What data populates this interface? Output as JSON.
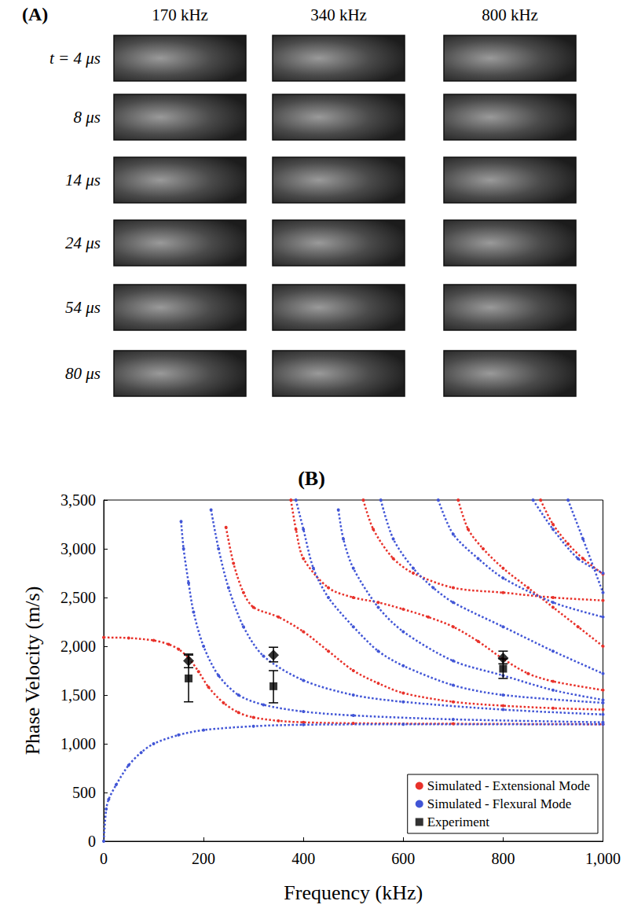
{
  "panel_a": {
    "label": "(A)",
    "columns": [
      "170 kHz",
      "340 kHz",
      "800 kHz"
    ],
    "rows": [
      "t = 4 μs",
      "8 μs",
      "14 μs",
      "24 μs",
      "54 μs",
      "80 μs"
    ]
  },
  "chart_data": {
    "type": "line",
    "title": "(B)",
    "x_label": "Frequency (kHz)",
    "y_label": "Phase Velocity (m/s)",
    "xlim": [
      0,
      1000
    ],
    "ylim": [
      0,
      3500
    ],
    "xticks": [
      0,
      200,
      400,
      600,
      800,
      1000
    ],
    "yticks": [
      0,
      500,
      1000,
      1500,
      2000,
      2500,
      3000,
      3500
    ],
    "grid": false,
    "legend": "lower right",
    "series": [
      {
        "name": "Simulated - Extensional Mode",
        "type": "line",
        "color": "#e8312a",
        "marker": "circle",
        "line_style": "dotted",
        "x": [
          0,
          50,
          100,
          130,
          150,
          170,
          190,
          210,
          240,
          270,
          300,
          350,
          400,
          500,
          700,
          1000
        ],
        "values": [
          2090,
          2085,
          2060,
          2020,
          1970,
          1880,
          1740,
          1580,
          1420,
          1320,
          1270,
          1235,
          1220,
          1210,
          1205,
          1200
        ]
      },
      {
        "name": "Simulated - Extensional Mode",
        "type": "line",
        "color": "#e8312a",
        "marker": "circle",
        "line_style": "dotted",
        "x": [
          245,
          260,
          280,
          300,
          350,
          400,
          450,
          500,
          550,
          600,
          700,
          800,
          900,
          1000
        ],
        "values": [
          3220,
          2850,
          2550,
          2400,
          2300,
          2150,
          1950,
          1750,
          1620,
          1520,
          1430,
          1390,
          1365,
          1350
        ]
      },
      {
        "name": "Simulated - Extensional Mode",
        "type": "line",
        "color": "#e8312a",
        "marker": "circle",
        "line_style": "dotted",
        "x": [
          375,
          385,
          400,
          450,
          500,
          550,
          600,
          650,
          700,
          750,
          800,
          850,
          900,
          1000
        ],
        "values": [
          3500,
          3200,
          2900,
          2600,
          2500,
          2450,
          2380,
          2300,
          2200,
          2050,
          1870,
          1720,
          1640,
          1550
        ]
      },
      {
        "name": "Simulated - Extensional Mode",
        "type": "line",
        "color": "#e8312a",
        "marker": "circle",
        "line_style": "dotted",
        "x": [
          520,
          540,
          580,
          620,
          700,
          800,
          900,
          1000
        ],
        "values": [
          3500,
          3200,
          2900,
          2750,
          2600,
          2550,
          2500,
          2470
        ]
      },
      {
        "name": "Simulated - Extensional Mode",
        "type": "line",
        "color": "#e8312a",
        "marker": "circle",
        "line_style": "dotted",
        "x": [
          710,
          730,
          760,
          800,
          850,
          900,
          950,
          1000
        ],
        "values": [
          3500,
          3200,
          3000,
          2800,
          2600,
          2400,
          2200,
          2000
        ]
      },
      {
        "name": "Simulated - Extensional Mode",
        "type": "line",
        "color": "#e8312a",
        "marker": "circle",
        "line_style": "dotted",
        "x": [
          875,
          900,
          930,
          960,
          1000
        ],
        "values": [
          3500,
          3250,
          3050,
          2900,
          2740
        ]
      },
      {
        "name": "Simulated - Flexural Mode",
        "type": "line",
        "color": "#4155d6",
        "marker": "circle",
        "line_style": "dotted",
        "x": [
          0,
          5,
          10,
          25,
          50,
          75,
          100,
          150,
          200,
          300,
          400,
          600,
          1000
        ],
        "values": [
          0,
          330,
          430,
          580,
          780,
          910,
          1000,
          1090,
          1140,
          1180,
          1195,
          1200,
          1200
        ]
      },
      {
        "name": "Simulated - Flexural Mode",
        "type": "line",
        "color": "#4155d6",
        "marker": "circle",
        "line_style": "dotted",
        "x": [
          155,
          160,
          170,
          180,
          200,
          230,
          270,
          320,
          400,
          500,
          700,
          1000
        ],
        "values": [
          3280,
          3000,
          2650,
          2350,
          2000,
          1700,
          1500,
          1400,
          1330,
          1290,
          1250,
          1220
        ]
      },
      {
        "name": "Simulated - Flexural Mode",
        "type": "line",
        "color": "#4155d6",
        "marker": "circle",
        "line_style": "dotted",
        "x": [
          215,
          230,
          250,
          280,
          320,
          400,
          500,
          600,
          800,
          1000
        ],
        "values": [
          3400,
          3000,
          2600,
          2200,
          1900,
          1650,
          1500,
          1430,
          1350,
          1300
        ]
      },
      {
        "name": "Simulated - Flexural Mode",
        "type": "line",
        "color": "#4155d6",
        "marker": "circle",
        "line_style": "dotted",
        "x": [
          385,
          400,
          420,
          450,
          500,
          550,
          600,
          700,
          800,
          1000
        ],
        "values": [
          3500,
          3200,
          2800,
          2500,
          2200,
          1950,
          1800,
          1600,
          1500,
          1420
        ]
      },
      {
        "name": "Simulated - Flexural Mode",
        "type": "line",
        "color": "#4155d6",
        "marker": "circle",
        "line_style": "dotted",
        "x": [
          470,
          480,
          500,
          550,
          600,
          700,
          800,
          900,
          1000
        ],
        "values": [
          3400,
          3100,
          2800,
          2400,
          2150,
          1850,
          1700,
          1550,
          1450
        ]
      },
      {
        "name": "Simulated - Flexural Mode",
        "type": "line",
        "color": "#4155d6",
        "marker": "circle",
        "line_style": "dotted",
        "x": [
          555,
          580,
          620,
          660,
          700,
          800,
          900,
          1000
        ],
        "values": [
          3500,
          3100,
          2800,
          2600,
          2450,
          2200,
          1950,
          1720
        ]
      },
      {
        "name": "Simulated - Flexural Mode",
        "type": "line",
        "color": "#4155d6",
        "marker": "circle",
        "line_style": "dotted",
        "x": [
          670,
          700,
          750,
          800,
          900,
          1000
        ],
        "values": [
          3500,
          3150,
          2900,
          2700,
          2450,
          2300
        ]
      },
      {
        "name": "Simulated - Flexural Mode",
        "type": "line",
        "color": "#4155d6",
        "marker": "circle",
        "line_style": "dotted",
        "x": [
          860,
          900,
          950,
          1000
        ],
        "values": [
          3500,
          3200,
          2900,
          2750
        ]
      },
      {
        "name": "Simulated - Flexural Mode",
        "type": "line",
        "color": "#4155d6",
        "marker": "circle",
        "line_style": "dotted",
        "x": [
          930,
          960,
          1000
        ],
        "values": [
          3500,
          3100,
          2550
        ]
      },
      {
        "name": "Experiment",
        "type": "scatter",
        "color": "#000000",
        "marker": "rect",
        "x": [
          170,
          340,
          800
        ],
        "values": [
          1670,
          1590,
          1770
        ],
        "error_low": [
          1430,
          1420,
          1670
        ],
        "error_high": [
          1910,
          1750,
          1870
        ]
      },
      {
        "name": "Experiment",
        "type": "scatter",
        "color": "#000000",
        "marker": "diamond",
        "x": [
          170,
          340,
          800
        ],
        "values": [
          1850,
          1910,
          1880
        ],
        "error_low": [
          1780,
          1840,
          1820
        ],
        "error_high": [
          1920,
          1990,
          1950
        ]
      }
    ]
  }
}
